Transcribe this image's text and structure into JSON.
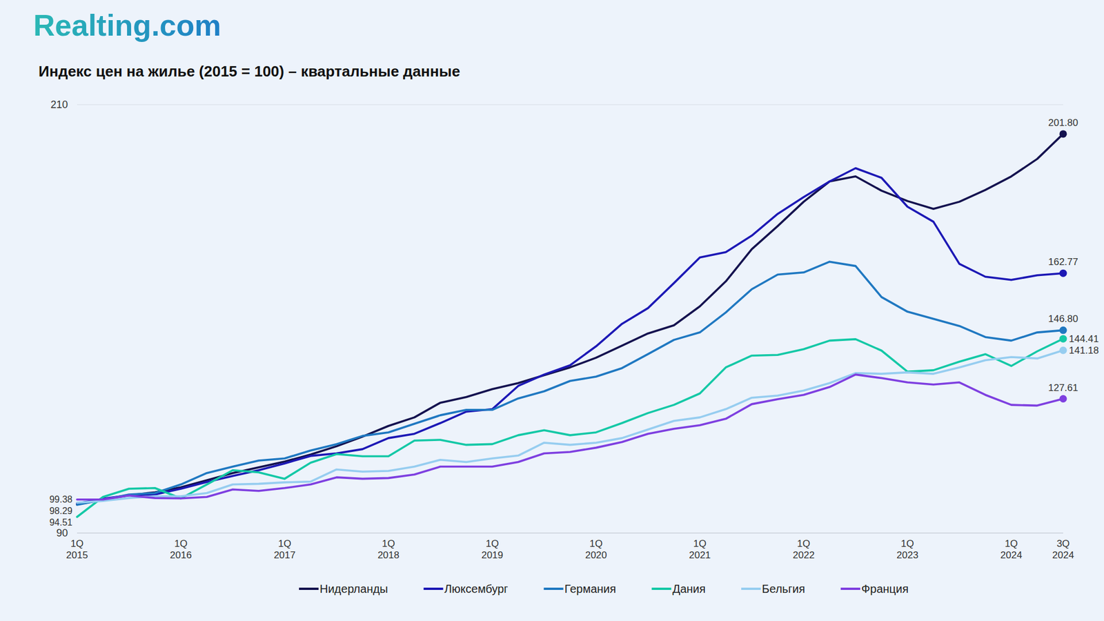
{
  "header": {
    "logo": "Realting.com"
  },
  "chart_data": {
    "type": "line",
    "title": "Индекс цен на жилье (2015 = 100) – квартальные данные",
    "categories": [
      "1Q 2015",
      null,
      null,
      null,
      "1Q 2016",
      null,
      null,
      null,
      "1Q 2017",
      null,
      null,
      null,
      "1Q 2018",
      null,
      null,
      null,
      "1Q 2019",
      null,
      null,
      null,
      "1Q 2020",
      null,
      null,
      null,
      "1Q 2021",
      null,
      null,
      null,
      "1Q 2022",
      null,
      null,
      null,
      "1Q 2023",
      null,
      null,
      null,
      "1Q 2024",
      null,
      "3Q 2024"
    ],
    "ylim": [
      90,
      210
    ],
    "yticks": [
      90,
      210
    ],
    "grid": true,
    "legend": "bottom",
    "series": [
      {
        "name": "Нидерланды",
        "color": "#14124f",
        "marker": "last",
        "values": [
          98.0,
          99.3,
          100.6,
          101.4,
          102.8,
          104.8,
          106.8,
          108.4,
          110.0,
          112.0,
          114.3,
          117.0,
          120.0,
          122.4,
          126.5,
          128.1,
          130.3,
          132.0,
          134.2,
          136.4,
          139.1,
          142.5,
          145.9,
          148.2,
          153.5,
          160.5,
          169.5,
          176.0,
          182.8,
          188.5,
          189.9,
          185.9,
          183.0,
          180.8,
          182.8,
          186.1,
          189.9,
          194.8,
          201.8
        ],
        "value_labels": [
          null,
          null,
          null,
          null,
          null,
          null,
          null,
          null,
          null,
          null,
          null,
          null,
          null,
          null,
          null,
          null,
          null,
          null,
          null,
          null,
          null,
          null,
          null,
          null,
          null,
          null,
          null,
          null,
          null,
          null,
          null,
          null,
          null,
          null,
          null,
          null,
          null,
          null,
          "201.80"
        ]
      },
      {
        "name": "Люксембург",
        "color": "#1c18b5",
        "marker": "last",
        "values": [
          98.29,
          99.6,
          100.6,
          100.8,
          102.4,
          104.3,
          106.0,
          107.6,
          109.5,
          111.6,
          112.3,
          113.5,
          116.6,
          117.8,
          120.8,
          124.0,
          124.7,
          131.2,
          134.4,
          137.0,
          142.3,
          148.6,
          153.0,
          160.0,
          167.2,
          168.7,
          173.3,
          179.4,
          184.1,
          188.5,
          192.2,
          189.5,
          181.4,
          177.2,
          165.4,
          161.8,
          160.9,
          162.2,
          162.77
        ],
        "value_labels": [
          "98.29",
          null,
          null,
          null,
          null,
          null,
          null,
          null,
          null,
          null,
          null,
          null,
          null,
          null,
          null,
          null,
          null,
          null,
          null,
          null,
          null,
          null,
          null,
          null,
          null,
          null,
          null,
          null,
          null,
          null,
          null,
          null,
          null,
          null,
          null,
          null,
          null,
          null,
          "162.77"
        ]
      },
      {
        "name": "Германия",
        "color": "#1f78c1",
        "marker": "last",
        "values": [
          97.9,
          99.3,
          100.8,
          101.2,
          103.6,
          106.8,
          108.6,
          110.3,
          110.9,
          113.1,
          114.9,
          117.2,
          118.2,
          120.6,
          123.0,
          124.5,
          124.5,
          127.7,
          129.7,
          132.6,
          133.8,
          136.2,
          140.1,
          144.1,
          146.2,
          151.8,
          158.3,
          162.4,
          163.0,
          166.0,
          164.8,
          156.1,
          152.0,
          150.0,
          148.0,
          144.9,
          143.9,
          146.2,
          146.8
        ],
        "value_labels": [
          null,
          null,
          null,
          null,
          null,
          null,
          null,
          null,
          null,
          null,
          null,
          null,
          null,
          null,
          null,
          null,
          null,
          null,
          null,
          null,
          null,
          null,
          null,
          null,
          null,
          null,
          null,
          null,
          null,
          null,
          null,
          null,
          null,
          null,
          null,
          null,
          null,
          null,
          "146.80"
        ]
      },
      {
        "name": "Дания",
        "color": "#14c8a6",
        "marker": "last",
        "values": [
          94.51,
          100.1,
          102.4,
          102.6,
          99.7,
          103.6,
          107.6,
          107.0,
          105.2,
          109.7,
          112.1,
          111.5,
          111.5,
          115.9,
          116.1,
          114.7,
          114.9,
          117.4,
          118.8,
          117.4,
          118.2,
          120.8,
          123.6,
          125.9,
          129.1,
          136.4,
          139.7,
          139.9,
          141.5,
          143.9,
          144.3,
          141.1,
          135.2,
          135.6,
          138.0,
          140.1,
          136.8,
          140.9,
          144.41
        ],
        "value_labels": [
          "94.51",
          null,
          null,
          null,
          null,
          null,
          null,
          null,
          null,
          null,
          null,
          null,
          null,
          null,
          null,
          null,
          null,
          null,
          null,
          null,
          null,
          null,
          null,
          null,
          null,
          null,
          null,
          null,
          null,
          null,
          null,
          null,
          null,
          null,
          null,
          null,
          null,
          null,
          "144.41"
        ]
      },
      {
        "name": "Бельгия",
        "color": "#96cdf0",
        "marker": "last",
        "values": [
          98.5,
          99.0,
          99.8,
          100.3,
          100.3,
          101.2,
          103.6,
          103.8,
          104.2,
          104.4,
          107.8,
          107.2,
          107.4,
          108.6,
          110.5,
          109.9,
          110.9,
          111.7,
          115.3,
          114.7,
          115.3,
          116.6,
          119.0,
          121.4,
          122.4,
          124.7,
          127.9,
          128.5,
          129.9,
          132.0,
          134.8,
          134.6,
          135.0,
          134.6,
          136.4,
          138.4,
          139.3,
          138.9,
          141.18
        ],
        "value_labels": [
          null,
          null,
          null,
          null,
          null,
          null,
          null,
          null,
          null,
          null,
          null,
          null,
          null,
          null,
          null,
          null,
          null,
          null,
          null,
          null,
          null,
          null,
          null,
          null,
          null,
          null,
          null,
          null,
          null,
          null,
          null,
          null,
          null,
          null,
          null,
          null,
          null,
          null,
          "141.18"
        ]
      },
      {
        "name": "Франция",
        "color": "#7e3fe0",
        "marker": "last",
        "values": [
          99.38,
          99.4,
          100.5,
          99.8,
          99.7,
          100.1,
          102.2,
          101.8,
          102.6,
          103.6,
          105.6,
          105.2,
          105.4,
          106.4,
          108.6,
          108.6,
          108.6,
          109.9,
          112.3,
          112.7,
          113.9,
          115.5,
          117.8,
          119.2,
          120.2,
          122.0,
          126.1,
          127.5,
          128.7,
          130.9,
          134.4,
          133.4,
          132.2,
          131.6,
          132.2,
          128.7,
          125.9,
          125.7,
          127.61
        ],
        "value_labels": [
          "99.38",
          null,
          null,
          null,
          null,
          null,
          null,
          null,
          null,
          null,
          null,
          null,
          null,
          null,
          null,
          null,
          null,
          null,
          null,
          null,
          null,
          null,
          null,
          null,
          null,
          null,
          null,
          null,
          null,
          null,
          null,
          null,
          null,
          null,
          null,
          null,
          null,
          null,
          "127.61"
        ]
      }
    ]
  }
}
